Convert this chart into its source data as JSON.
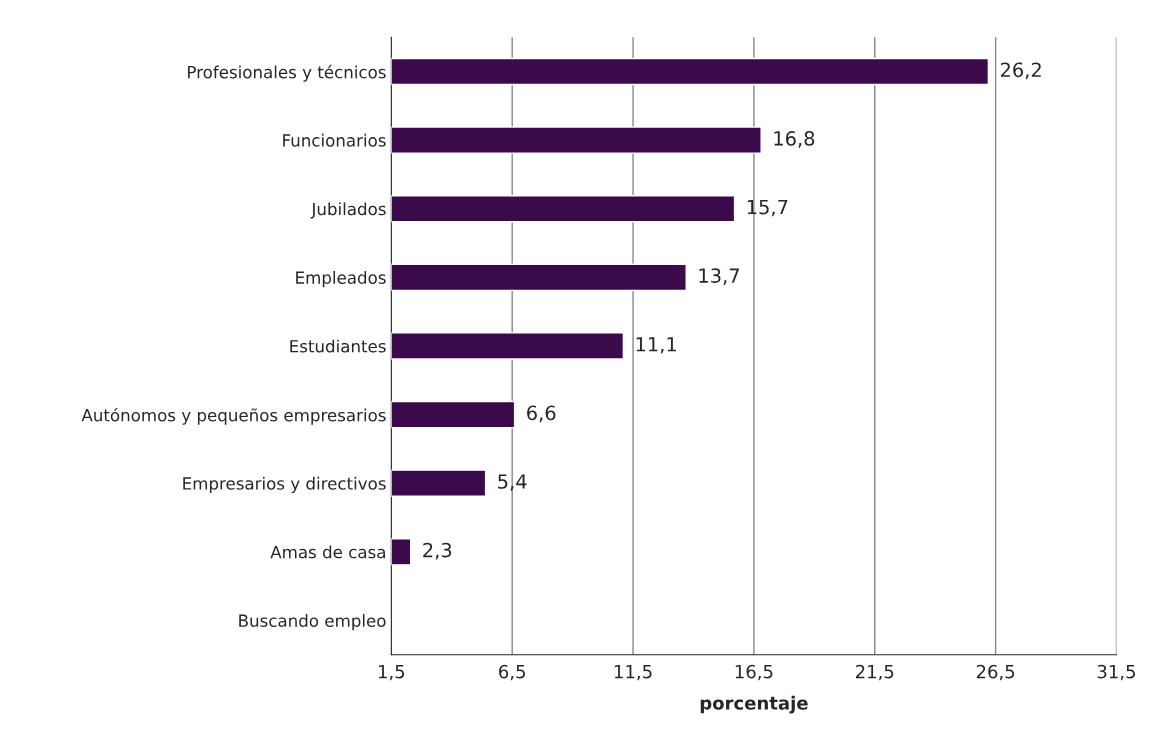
{
  "chart_data": {
    "type": "bar",
    "orientation": "horizontal",
    "xlabel": "porcentaje",
    "categories": [
      "Profesionales y técnicos",
      "Funcionarios",
      "Jubilados",
      "Empleados",
      "Estudiantes",
      "Autónomos y pequeños empresarios",
      "Empresarios y directivos",
      "Amas de casa",
      "Buscando empleo"
    ],
    "values": [
      26.2,
      16.8,
      15.7,
      13.7,
      11.1,
      6.6,
      5.4,
      2.3,
      null
    ],
    "value_labels": [
      "26,2",
      "16,8",
      "15,7",
      "13,7",
      "11,1",
      "6,6",
      "5,4",
      "2,3",
      null
    ],
    "color": "#3a0a4a",
    "xlim": [
      1.5,
      31.5
    ],
    "xticks": [
      {
        "value": 1.5,
        "label": "1,5"
      },
      {
        "value": 6.5,
        "label": "6,5"
      },
      {
        "value": 11.5,
        "label": "11,5"
      },
      {
        "value": 16.5,
        "label": "16,5"
      },
      {
        "value": 21.5,
        "label": "21,5"
      },
      {
        "value": 26.5,
        "label": "26,5"
      },
      {
        "value": 31.5,
        "label": "31,5"
      }
    ],
    "grid": "x"
  }
}
